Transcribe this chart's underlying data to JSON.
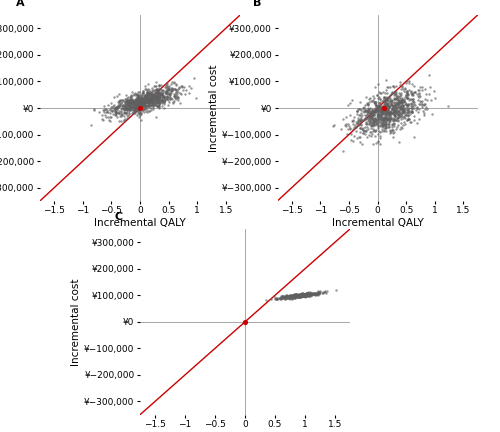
{
  "panels": [
    "A",
    "B",
    "C"
  ],
  "xlim": [
    -1.75,
    1.75
  ],
  "ylim": [
    -350000,
    350000
  ],
  "xticks": [
    -1.5,
    -1.0,
    -0.5,
    0.0,
    0.5,
    1.0,
    1.5
  ],
  "yticks": [
    -300000,
    -200000,
    -100000,
    0,
    100000,
    200000,
    300000
  ],
  "xlabel": "Incremental QALY",
  "ylabel": "Incremental cost",
  "line_color": "#cc0000",
  "dot_color": "#606060",
  "red_dot_color": "#cc0000",
  "dot_size": 3,
  "line_slope": 200000,
  "scatter_A": {
    "center_x": 0.05,
    "center_y": 25000,
    "spread_x": 0.3,
    "spread_y": 28000,
    "corr": 0.7,
    "n": 1000
  },
  "scatter_B": {
    "center_x": 0.15,
    "center_y": -15000,
    "spread_x": 0.3,
    "spread_y": 45000,
    "corr": 0.5,
    "n": 1000
  },
  "scatter_C": {
    "center_x": 0.92,
    "center_y": 100000,
    "spread_x": 0.18,
    "spread_y": 6000,
    "corr": 0.85,
    "n": 500
  },
  "red_dot_A": [
    0.0,
    0.0
  ],
  "red_dot_B": [
    0.12,
    0.0
  ],
  "red_dot_C": [
    0.0,
    0.0
  ],
  "background_color": "#ffffff",
  "tick_labelsize": 6.5,
  "axis_labelsize": 7.5,
  "panel_labelsize": 8
}
